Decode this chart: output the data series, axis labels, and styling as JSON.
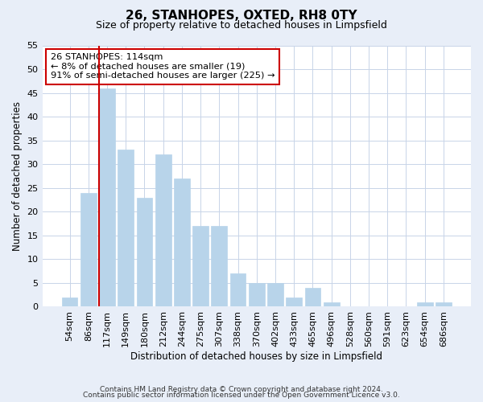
{
  "title": "26, STANHOPES, OXTED, RH8 0TY",
  "subtitle": "Size of property relative to detached houses in Limpsfield",
  "xlabel": "Distribution of detached houses by size in Limpsfield",
  "ylabel": "Number of detached properties",
  "bar_labels": [
    "54sqm",
    "86sqm",
    "117sqm",
    "149sqm",
    "180sqm",
    "212sqm",
    "244sqm",
    "275sqm",
    "307sqm",
    "338sqm",
    "370sqm",
    "402sqm",
    "433sqm",
    "465sqm",
    "496sqm",
    "528sqm",
    "560sqm",
    "591sqm",
    "623sqm",
    "654sqm",
    "686sqm"
  ],
  "bar_values": [
    2,
    24,
    46,
    33,
    23,
    32,
    27,
    17,
    17,
    7,
    5,
    5,
    2,
    4,
    1,
    0,
    0,
    0,
    0,
    1,
    1
  ],
  "bar_color": "#b8d4ea",
  "bar_edge_color": "#b8d4ea",
  "marker_bar_index": 2,
  "marker_color": "#cc0000",
  "ylim": [
    0,
    55
  ],
  "yticks": [
    0,
    5,
    10,
    15,
    20,
    25,
    30,
    35,
    40,
    45,
    50,
    55
  ],
  "annotation_title": "26 STANHOPES: 114sqm",
  "annotation_line1": "← 8% of detached houses are smaller (19)",
  "annotation_line2": "91% of semi-detached houses are larger (225) →",
  "annotation_box_color": "#ffffff",
  "annotation_box_edge": "#cc0000",
  "footer1": "Contains HM Land Registry data © Crown copyright and database right 2024.",
  "footer2": "Contains public sector information licensed under the Open Government Licence v3.0.",
  "bg_color": "#e8eef8",
  "plot_bg_color": "#ffffff",
  "grid_color": "#c8d4e8"
}
